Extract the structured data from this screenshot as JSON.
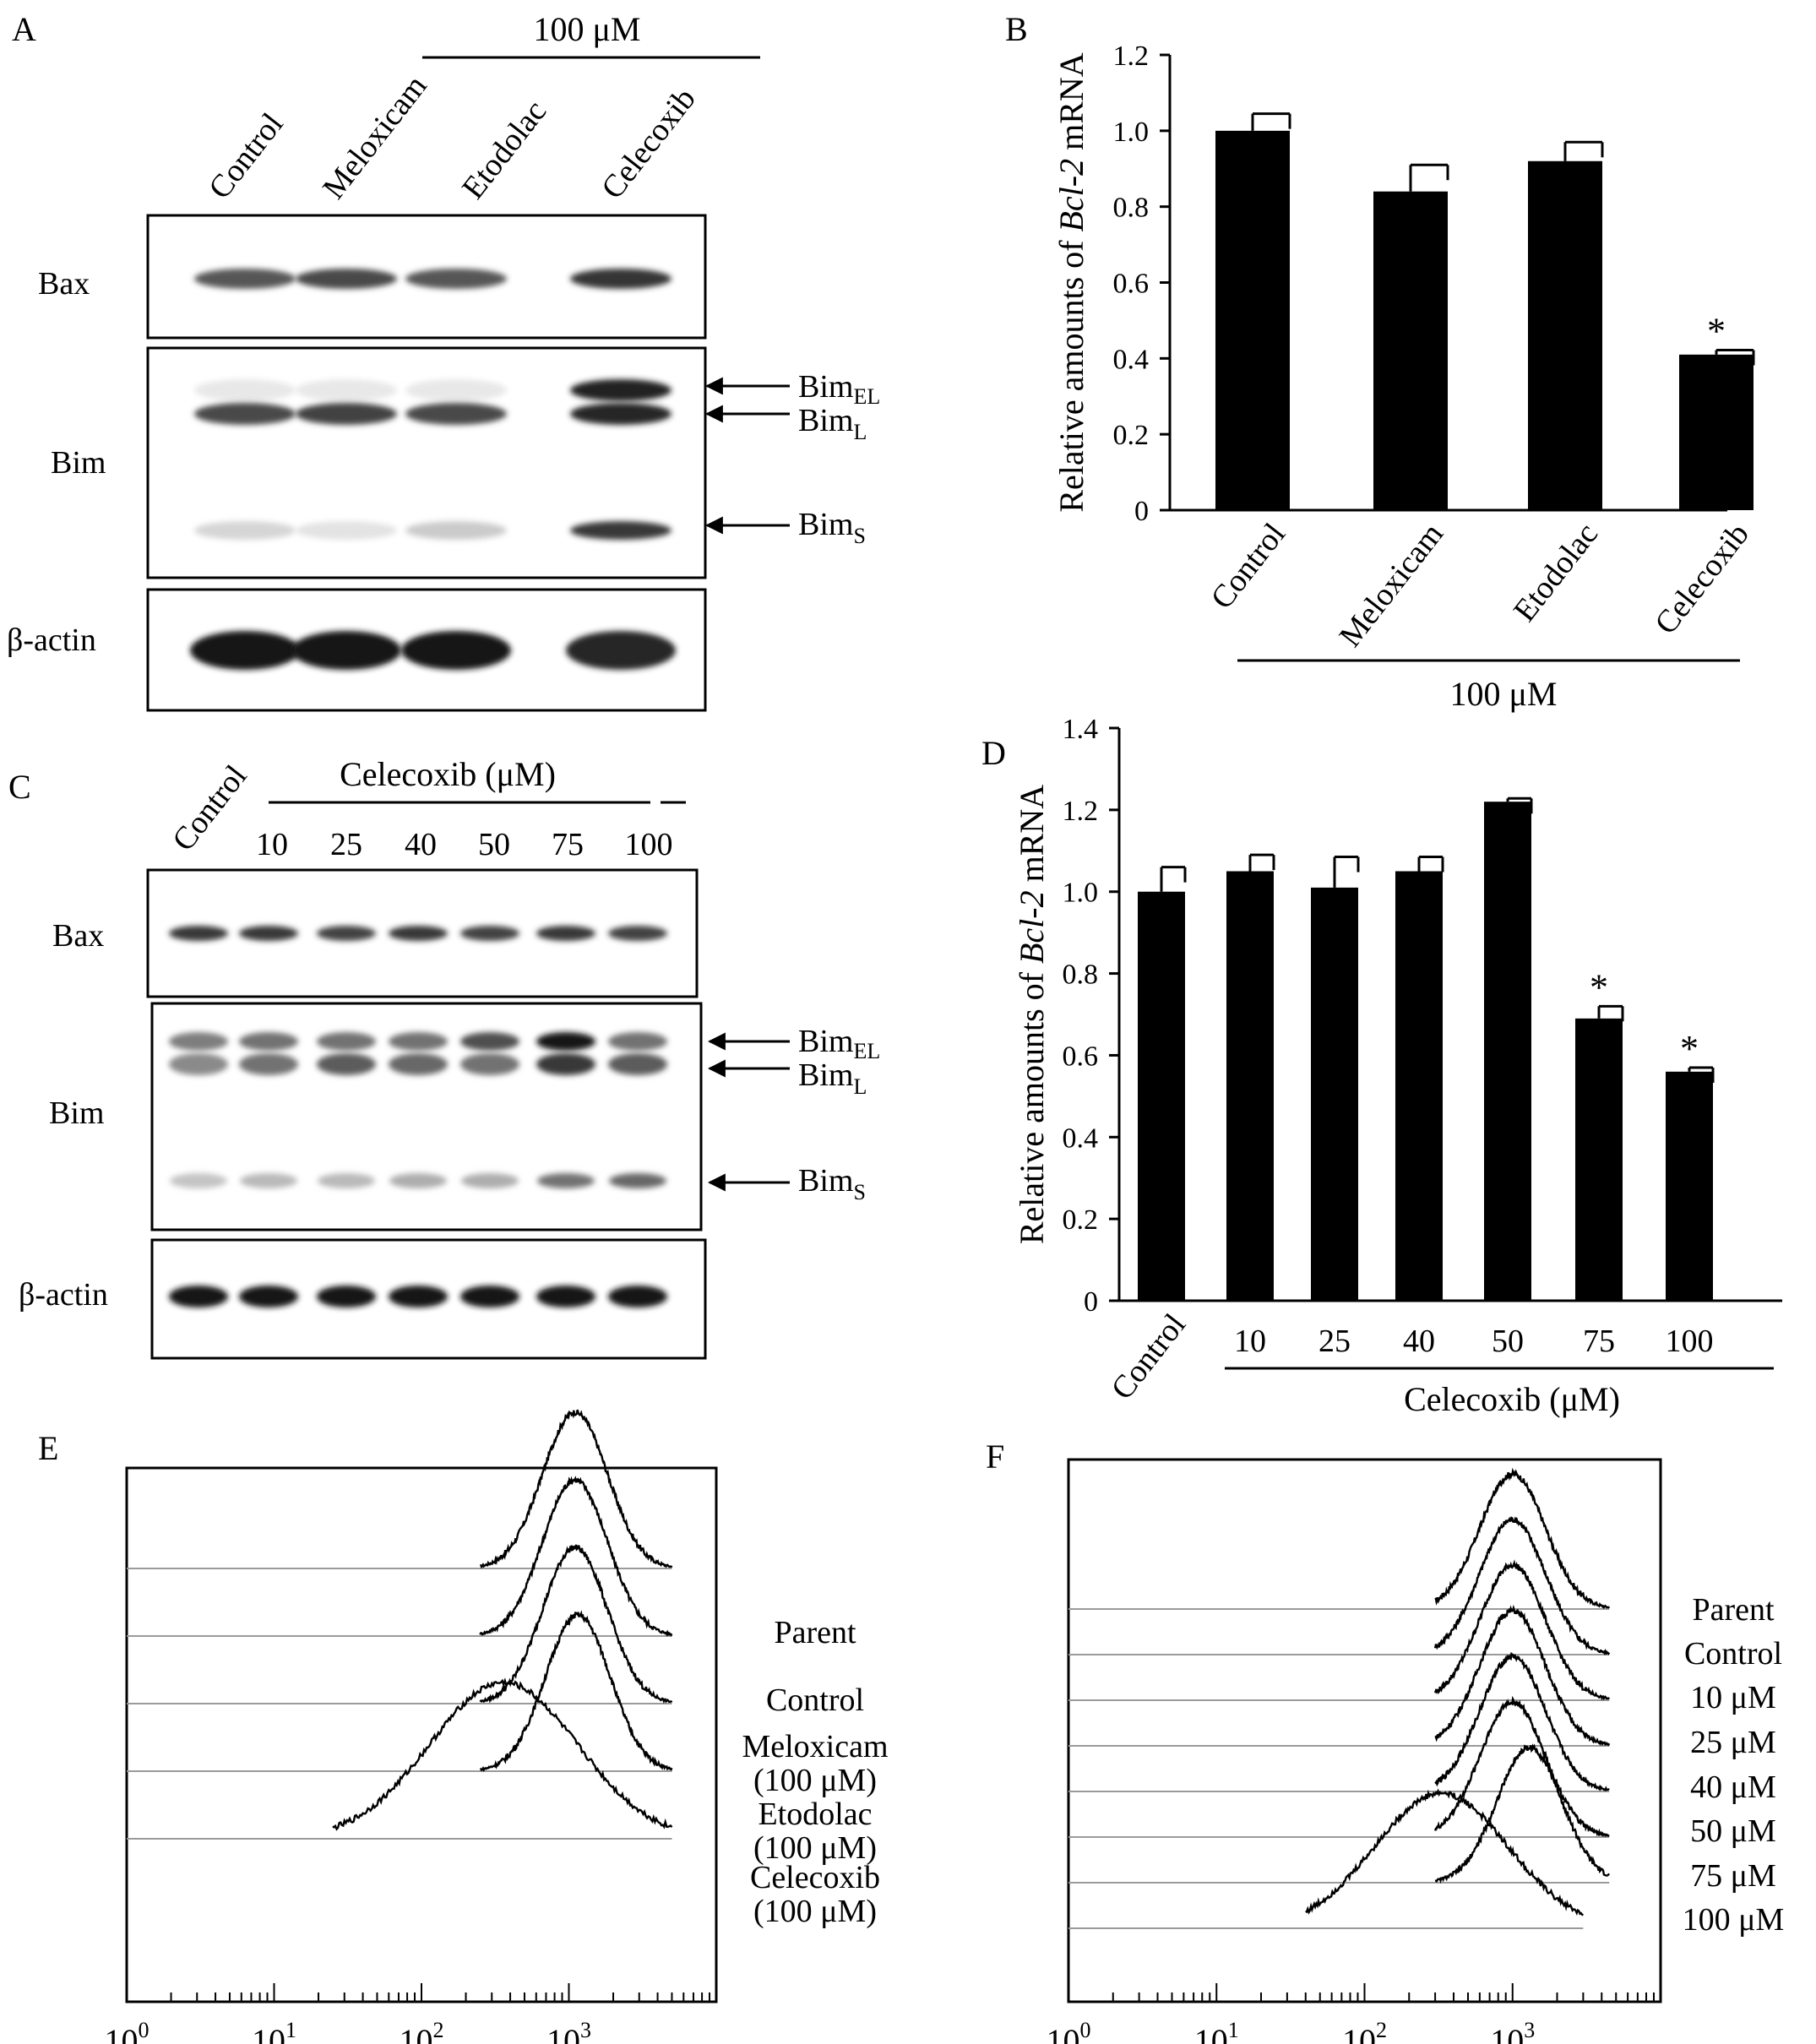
{
  "panels": {
    "A": {
      "letter": "A",
      "dose_label": "100 μM",
      "lanes": [
        "Control",
        "Meloxicam",
        "Etodolac",
        "Celecoxib"
      ],
      "rows": [
        "Bax",
        "Bim",
        "β-actin"
      ],
      "bands": {
        "bax": [
          0.72,
          0.78,
          0.72,
          0.86
        ],
        "bim_el": [
          0.1,
          0.1,
          0.1,
          0.95
        ],
        "bim_l": [
          0.78,
          0.8,
          0.78,
          0.92
        ],
        "bim_s": [
          0.18,
          0.12,
          0.22,
          0.85
        ],
        "actin": [
          1.0,
          0.98,
          0.98,
          0.92
        ]
      },
      "arrow_labels": [
        {
          "base": "Bim",
          "sub": "EL"
        },
        {
          "base": "Bim",
          "sub": "L"
        },
        {
          "base": "Bim",
          "sub": "S"
        }
      ]
    },
    "C": {
      "letter": "C",
      "control_label": "Control",
      "dose_header": "Celecoxib (μM)",
      "doses": [
        "10",
        "25",
        "40",
        "50",
        "75",
        "100"
      ],
      "rows": [
        "Bax",
        "Bim",
        "β-actin"
      ],
      "bands": {
        "bax": [
          0.85,
          0.85,
          0.8,
          0.85,
          0.8,
          0.85,
          0.8
        ],
        "bim_el": [
          0.55,
          0.6,
          0.6,
          0.6,
          0.75,
          1.0,
          0.6
        ],
        "bim_l": [
          0.5,
          0.6,
          0.7,
          0.65,
          0.6,
          0.85,
          0.7
        ],
        "bim_s": [
          0.25,
          0.3,
          0.3,
          0.35,
          0.35,
          0.6,
          0.65
        ],
        "actin": [
          1.0,
          1.0,
          1.0,
          1.0,
          1.0,
          1.0,
          1.0
        ]
      },
      "arrow_labels": [
        {
          "base": "Bim",
          "sub": "EL"
        },
        {
          "base": "Bim",
          "sub": "L"
        },
        {
          "base": "Bim",
          "sub": "S"
        }
      ]
    },
    "B": {
      "letter": "B",
      "group_label": "100 μM"
    },
    "D": {
      "letter": "D",
      "group_label": "Celecoxib (μM)"
    },
    "E": {
      "letter": "E",
      "curve_labels": [
        [
          "Parent"
        ],
        [
          "Control"
        ],
        [
          "Meloxicam",
          "(100 μM)"
        ],
        [
          "Etodolac",
          "(100 μM)"
        ],
        [
          "Celecoxib",
          "(100 μM)"
        ]
      ]
    },
    "F": {
      "letter": "F",
      "curve_labels": [
        [
          "Parent"
        ],
        [
          "Control"
        ],
        [
          "10 μM"
        ],
        [
          "25 μM"
        ],
        [
          "40 μM"
        ],
        [
          "50 μM"
        ],
        [
          "75 μM"
        ],
        [
          "100 μM"
        ]
      ]
    }
  },
  "chart_data": [
    {
      "id": "B",
      "type": "bar",
      "categories": [
        "Control",
        "Meloxicam",
        "Etodolac",
        "Celecoxib"
      ],
      "values": [
        1.0,
        0.84,
        0.92,
        0.41
      ],
      "errors": [
        0.045,
        0.07,
        0.05,
        0.012
      ],
      "significance": [
        "",
        "",
        "",
        "*"
      ],
      "ylabel_parts": [
        "Relative amounts of ",
        "Bcl-2",
        " mRNA"
      ],
      "ylim": [
        0,
        1.2
      ],
      "yticks": [
        "0",
        "0.2",
        "0.4",
        "0.6",
        "0.8",
        "1.0",
        "1.2"
      ],
      "bar_color": "#000000"
    },
    {
      "id": "D",
      "type": "bar",
      "categories": [
        "Control",
        "10",
        "25",
        "40",
        "50",
        "75",
        "100"
      ],
      "values": [
        1.0,
        1.05,
        1.01,
        1.05,
        1.22,
        0.69,
        0.56
      ],
      "errors": [
        0.06,
        0.04,
        0.075,
        0.035,
        0.008,
        0.03,
        0.01
      ],
      "significance": [
        "",
        "",
        "",
        "",
        "",
        "*",
        "*"
      ],
      "ylabel_parts": [
        "Relative amounts of ",
        "Bcl-2",
        " mRNA"
      ],
      "ylim": [
        0,
        1.4
      ],
      "yticks": [
        "0",
        "0.2",
        "0.4",
        "0.6",
        "0.8",
        "1.0",
        "1.2",
        "1.4"
      ],
      "bar_color": "#000000"
    },
    {
      "id": "E",
      "type": "area",
      "x_scale": "log",
      "xlim": [
        1,
        10000
      ],
      "xtick_exponents": [
        "0",
        "1",
        "2",
        "3"
      ],
      "series": [
        {
          "peak": 1100,
          "width_decades": 0.22,
          "extent": [
            250,
            5000
          ]
        },
        {
          "peak": 1100,
          "width_decades": 0.22,
          "extent": [
            250,
            5000
          ]
        },
        {
          "peak": 1100,
          "width_decades": 0.22,
          "extent": [
            250,
            5000
          ]
        },
        {
          "peak": 1150,
          "width_decades": 0.22,
          "extent": [
            250,
            5000
          ]
        },
        {
          "peak": 360,
          "width_decades": 0.5,
          "extent": [
            25,
            5000
          ]
        }
      ]
    },
    {
      "id": "F",
      "type": "area",
      "x_scale": "log",
      "xlim": [
        1,
        10000
      ],
      "xtick_exponents": [
        "0",
        "1",
        "2",
        "3"
      ],
      "series": [
        {
          "peak": 1000,
          "width_decades": 0.22,
          "extent": [
            300,
            4500
          ]
        },
        {
          "peak": 1000,
          "width_decades": 0.22,
          "extent": [
            300,
            4500
          ]
        },
        {
          "peak": 1000,
          "width_decades": 0.22,
          "extent": [
            300,
            4500
          ]
        },
        {
          "peak": 1000,
          "width_decades": 0.22,
          "extent": [
            300,
            4500
          ]
        },
        {
          "peak": 1000,
          "width_decades": 0.22,
          "extent": [
            300,
            4500
          ]
        },
        {
          "peak": 1000,
          "width_decades": 0.22,
          "extent": [
            300,
            4500
          ]
        },
        {
          "peak": 1300,
          "width_decades": 0.22,
          "extent": [
            300,
            4500
          ]
        },
        {
          "peak": 330,
          "width_decades": 0.45,
          "extent": [
            40,
            3000
          ]
        }
      ]
    }
  ]
}
